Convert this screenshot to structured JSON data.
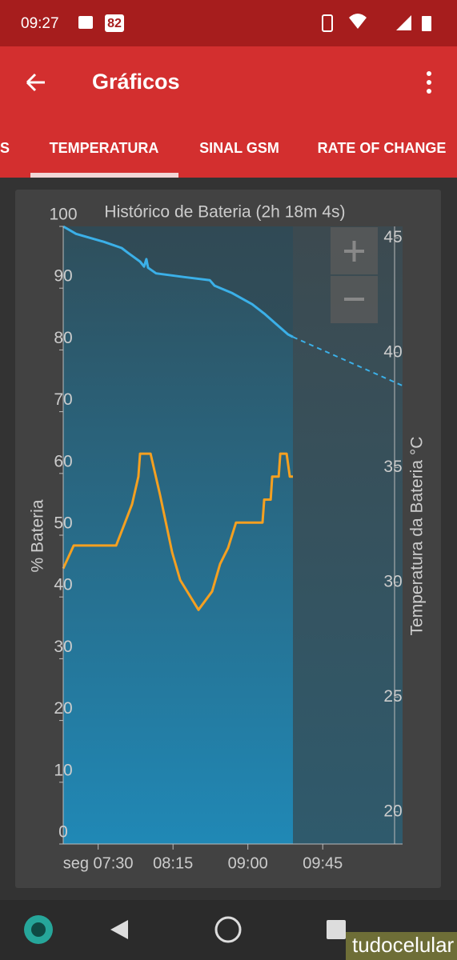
{
  "status_bar": {
    "time": "09:27",
    "badge": "82"
  },
  "app_bar": {
    "title": "Gráficos"
  },
  "tabs": [
    "S",
    "TEMPERATURA",
    "SINAL GSM",
    "RATE OF CHANGE"
  ],
  "chart_data": {
    "type": "line",
    "title": "Histórico de Bateria (2h 18m 4s)",
    "ylabel": "% Bateria",
    "y2label": "Temperatura da Bateria °C",
    "xlim": [
      429,
      633
    ],
    "xticks": [
      {
        "value": 450,
        "label": "seg 07:30"
      },
      {
        "value": 495,
        "label": "08:15"
      },
      {
        "value": 540,
        "label": "09:00"
      },
      {
        "value": 585,
        "label": "09:45"
      }
    ],
    "ylim": [
      0,
      100
    ],
    "yticks": [
      0,
      10,
      20,
      30,
      40,
      50,
      60,
      70,
      80,
      90,
      100
    ],
    "y2lim": [
      18.6,
      45.5
    ],
    "y2ticks": [
      20,
      25,
      30,
      35,
      40,
      45
    ],
    "grid": false,
    "series": [
      {
        "color": "#3bb0e8",
        "x": [
          429,
          436.7,
          453.5,
          464.1,
          468,
          475.2,
          477.6,
          479,
          480,
          484.8,
          501.7,
          517.1,
          520,
          530.6,
          542.6,
          549.8,
          557,
          564.2,
          567.1
        ],
        "values": [
          100,
          98.8,
          97.5,
          96.5,
          95.7,
          94.3,
          93.5,
          94.7,
          93.3,
          92.4,
          91.8,
          91.3,
          90.4,
          89.2,
          87.4,
          85.9,
          84.2,
          82.5,
          82.1
        ]
      },
      {
        "color": "#f5a020",
        "axis": "y2",
        "x": [
          429,
          435.3,
          460.8,
          465.6,
          470.4,
          474.2,
          475.2,
          481.5,
          487.2,
          494.5,
          499.3,
          510.3,
          518.5,
          523.3,
          528.1,
          532.9,
          548.8,
          549.8,
          553.7,
          554.6,
          558.5,
          559.5,
          563.3,
          565.2,
          567.1
        ],
        "values": [
          30.6,
          31.6,
          31.6,
          32.5,
          33.4,
          34.6,
          35.6,
          35.6,
          33.8,
          31.3,
          30.1,
          28.8,
          29.6,
          30.8,
          31.5,
          32.6,
          32.6,
          33.6,
          33.6,
          34.6,
          34.6,
          35.6,
          35.6,
          34.6,
          34.6
        ]
      }
    ],
    "projection": {
      "color": "#3bb0e8",
      "x": [
        567.1,
        633.1
      ],
      "values": [
        82.1,
        74.2
      ]
    }
  },
  "watermark": "tudocelular"
}
